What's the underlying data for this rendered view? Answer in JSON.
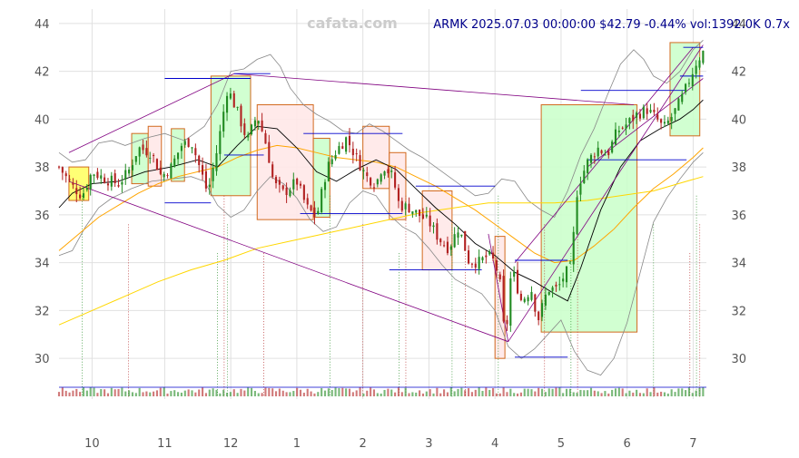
{
  "watermark": "cafata.com",
  "title": "ARMK 2025.07.03 00:00:00 $42.79 -0.44% vol:1392.0K 0.7x",
  "colors": {
    "up": "#228b22",
    "down": "#b22222",
    "grid": "#e0e0e0",
    "title": "#00008b",
    "ma_fast": "#000000",
    "ma_mid": "#ffa500",
    "ma_slow": "#ffd700",
    "band": "#888888",
    "trend": "#800080",
    "level": "#0000cd",
    "box_up_fill": "#ccffcc",
    "box_down_fill": "#ffe8e8",
    "box_edge": "#d2691e",
    "box_yellow": "#ffff66"
  },
  "chart_data": {
    "type": "candlestick",
    "title": "ARMK 2025.07.03 00:00:00 $42.79 -0.44% vol:1392.0K 0.7x",
    "x_ticks": [
      "10",
      "11",
      "12",
      "1",
      "2",
      "3",
      "4",
      "5",
      "6",
      "7"
    ],
    "x_tick_pos": [
      9.8,
      10.9,
      11.9,
      12.9,
      13.9,
      14.9,
      15.9,
      16.9,
      17.9,
      18.9
    ],
    "x_range": [
      9.3,
      19.1
    ],
    "y_ticks": [
      30,
      32,
      34,
      36,
      38,
      40,
      42,
      44
    ],
    "y_range": [
      28.3,
      44.6
    ],
    "close_path": [
      [
        9.3,
        38.0
      ],
      [
        9.5,
        37.2
      ],
      [
        9.65,
        36.8
      ],
      [
        9.8,
        37.8
      ],
      [
        10.0,
        37.5
      ],
      [
        10.2,
        37.3
      ],
      [
        10.35,
        37.8
      ],
      [
        10.5,
        38.8
      ],
      [
        10.7,
        38.6
      ],
      [
        10.85,
        37.6
      ],
      [
        11.0,
        38.0
      ],
      [
        11.15,
        38.9
      ],
      [
        11.3,
        39.1
      ],
      [
        11.45,
        37.8
      ],
      [
        11.55,
        36.9
      ],
      [
        11.7,
        38.8
      ],
      [
        11.85,
        41.3
      ],
      [
        12.0,
        40.3
      ],
      [
        12.15,
        39.1
      ],
      [
        12.3,
        40.2
      ],
      [
        12.45,
        38.8
      ],
      [
        12.55,
        37.3
      ],
      [
        12.7,
        36.9
      ],
      [
        12.9,
        37.4
      ],
      [
        13.05,
        36.3
      ],
      [
        13.2,
        35.9
      ],
      [
        13.35,
        37.9
      ],
      [
        13.5,
        38.7
      ],
      [
        13.65,
        39.2
      ],
      [
        13.8,
        38.4
      ],
      [
        13.95,
        37.6
      ],
      [
        14.1,
        37.3
      ],
      [
        14.2,
        38.1
      ],
      [
        14.35,
        37.6
      ],
      [
        14.45,
        36.4
      ],
      [
        14.6,
        36.3
      ],
      [
        14.75,
        36.0
      ],
      [
        14.9,
        35.7
      ],
      [
        15.05,
        35.0
      ],
      [
        15.2,
        34.6
      ],
      [
        15.35,
        35.5
      ],
      [
        15.5,
        34.1
      ],
      [
        15.65,
        34.0
      ],
      [
        15.8,
        34.3
      ],
      [
        15.9,
        34.0
      ],
      [
        16.0,
        32.8
      ],
      [
        16.05,
        30.4
      ],
      [
        16.15,
        33.8
      ],
      [
        16.3,
        32.4
      ],
      [
        16.45,
        32.9
      ],
      [
        16.55,
        31.6
      ],
      [
        16.7,
        32.9
      ],
      [
        16.85,
        32.9
      ],
      [
        16.95,
        33.5
      ],
      [
        17.05,
        33.8
      ],
      [
        17.15,
        37.2
      ],
      [
        17.3,
        38.2
      ],
      [
        17.45,
        38.8
      ],
      [
        17.6,
        38.5
      ],
      [
        17.75,
        39.5
      ],
      [
        17.9,
        39.8
      ],
      [
        18.05,
        40.2
      ],
      [
        18.2,
        40.4
      ],
      [
        18.35,
        40.0
      ],
      [
        18.45,
        39.6
      ],
      [
        18.6,
        40.2
      ],
      [
        18.75,
        41.0
      ],
      [
        18.85,
        41.7
      ],
      [
        18.95,
        42.4
      ],
      [
        19.05,
        42.8
      ]
    ],
    "ma_fast": [
      [
        9.3,
        36.3
      ],
      [
        9.5,
        36.9
      ],
      [
        9.8,
        37.3
      ],
      [
        10.2,
        37.4
      ],
      [
        10.6,
        37.8
      ],
      [
        11.0,
        38.0
      ],
      [
        11.4,
        38.3
      ],
      [
        11.7,
        38.0
      ],
      [
        12.0,
        38.9
      ],
      [
        12.3,
        39.7
      ],
      [
        12.6,
        39.6
      ],
      [
        12.9,
        38.8
      ],
      [
        13.2,
        37.8
      ],
      [
        13.5,
        37.4
      ],
      [
        13.8,
        37.9
      ],
      [
        14.1,
        38.3
      ],
      [
        14.4,
        37.9
      ],
      [
        14.7,
        37.1
      ],
      [
        15.0,
        36.3
      ],
      [
        15.3,
        35.6
      ],
      [
        15.6,
        34.8
      ],
      [
        15.9,
        34.3
      ],
      [
        16.2,
        33.6
      ],
      [
        16.5,
        33.2
      ],
      [
        16.8,
        32.7
      ],
      [
        17.0,
        32.4
      ],
      [
        17.2,
        33.8
      ],
      [
        17.5,
        36.2
      ],
      [
        17.8,
        38.0
      ],
      [
        18.1,
        39.1
      ],
      [
        18.4,
        39.6
      ],
      [
        18.7,
        40.0
      ],
      [
        18.9,
        40.4
      ],
      [
        19.05,
        40.8
      ]
    ],
    "ma_mid": [
      [
        9.3,
        34.5
      ],
      [
        9.6,
        35.2
      ],
      [
        9.9,
        35.9
      ],
      [
        10.2,
        36.4
      ],
      [
        10.5,
        36.9
      ],
      [
        10.8,
        37.3
      ],
      [
        11.1,
        37.6
      ],
      [
        11.4,
        37.8
      ],
      [
        11.7,
        38.0
      ],
      [
        12.0,
        38.4
      ],
      [
        12.3,
        38.7
      ],
      [
        12.6,
        38.9
      ],
      [
        12.9,
        38.8
      ],
      [
        13.2,
        38.6
      ],
      [
        13.5,
        38.4
      ],
      [
        13.8,
        38.3
      ],
      [
        14.1,
        38.2
      ],
      [
        14.4,
        38.0
      ],
      [
        14.7,
        37.6
      ],
      [
        15.0,
        37.2
      ],
      [
        15.3,
        36.7
      ],
      [
        15.6,
        36.2
      ],
      [
        15.9,
        35.6
      ],
      [
        16.2,
        35.0
      ],
      [
        16.5,
        34.4
      ],
      [
        16.8,
        34.0
      ],
      [
        17.1,
        34.1
      ],
      [
        17.4,
        34.7
      ],
      [
        17.7,
        35.4
      ],
      [
        18.0,
        36.3
      ],
      [
        18.3,
        37.1
      ],
      [
        18.6,
        37.7
      ],
      [
        18.9,
        38.4
      ],
      [
        19.05,
        38.8
      ]
    ],
    "ma_slow": [
      [
        9.3,
        31.4
      ],
      [
        9.8,
        32.0
      ],
      [
        10.3,
        32.6
      ],
      [
        10.8,
        33.2
      ],
      [
        11.3,
        33.7
      ],
      [
        11.8,
        34.1
      ],
      [
        12.3,
        34.6
      ],
      [
        12.8,
        34.9
      ],
      [
        13.3,
        35.2
      ],
      [
        13.8,
        35.5
      ],
      [
        14.3,
        35.8
      ],
      [
        14.8,
        36.1
      ],
      [
        15.3,
        36.3
      ],
      [
        15.8,
        36.5
      ],
      [
        16.3,
        36.5
      ],
      [
        16.8,
        36.5
      ],
      [
        17.3,
        36.6
      ],
      [
        17.8,
        36.8
      ],
      [
        18.3,
        37.0
      ],
      [
        18.8,
        37.4
      ],
      [
        19.05,
        37.6
      ]
    ],
    "band_upper": [
      [
        9.3,
        38.6
      ],
      [
        9.5,
        38.2
      ],
      [
        9.7,
        38.3
      ],
      [
        9.9,
        39.0
      ],
      [
        10.1,
        39.1
      ],
      [
        10.3,
        38.9
      ],
      [
        10.6,
        39.2
      ],
      [
        10.9,
        39.4
      ],
      [
        11.2,
        39.1
      ],
      [
        11.5,
        39.7
      ],
      [
        11.7,
        40.6
      ],
      [
        11.9,
        42.0
      ],
      [
        12.1,
        42.1
      ],
      [
        12.3,
        42.5
      ],
      [
        12.5,
        42.7
      ],
      [
        12.65,
        42.2
      ],
      [
        12.8,
        41.3
      ],
      [
        13.0,
        40.6
      ],
      [
        13.2,
        40.2
      ],
      [
        13.4,
        39.9
      ],
      [
        13.6,
        39.5
      ],
      [
        13.8,
        39.4
      ],
      [
        14.0,
        39.8
      ],
      [
        14.2,
        39.5
      ],
      [
        14.4,
        39.1
      ],
      [
        14.6,
        38.7
      ],
      [
        14.8,
        38.4
      ],
      [
        15.0,
        38.0
      ],
      [
        15.2,
        37.6
      ],
      [
        15.4,
        37.2
      ],
      [
        15.6,
        36.8
      ],
      [
        15.8,
        36.9
      ],
      [
        16.0,
        37.5
      ],
      [
        16.2,
        37.4
      ],
      [
        16.4,
        36.6
      ],
      [
        16.6,
        36.2
      ],
      [
        16.8,
        35.9
      ],
      [
        17.0,
        37.0
      ],
      [
        17.2,
        38.5
      ],
      [
        17.4,
        39.6
      ],
      [
        17.6,
        41.0
      ],
      [
        17.8,
        42.3
      ],
      [
        18.0,
        42.9
      ],
      [
        18.15,
        42.5
      ],
      [
        18.3,
        41.8
      ],
      [
        18.5,
        41.5
      ],
      [
        18.7,
        42.0
      ],
      [
        18.9,
        42.9
      ],
      [
        19.05,
        43.3
      ]
    ],
    "band_lower": [
      [
        9.3,
        34.3
      ],
      [
        9.5,
        34.5
      ],
      [
        9.7,
        35.5
      ],
      [
        9.9,
        36.3
      ],
      [
        10.1,
        36.7
      ],
      [
        10.4,
        37.1
      ],
      [
        10.7,
        37.4
      ],
      [
        11.0,
        37.5
      ],
      [
        11.3,
        37.6
      ],
      [
        11.5,
        37.4
      ],
      [
        11.7,
        36.4
      ],
      [
        11.9,
        35.9
      ],
      [
        12.1,
        36.2
      ],
      [
        12.3,
        37.0
      ],
      [
        12.5,
        37.6
      ],
      [
        12.7,
        37.3
      ],
      [
        12.9,
        36.7
      ],
      [
        13.1,
        35.8
      ],
      [
        13.3,
        35.3
      ],
      [
        13.5,
        35.5
      ],
      [
        13.7,
        36.5
      ],
      [
        13.9,
        37.0
      ],
      [
        14.1,
        36.8
      ],
      [
        14.3,
        36.0
      ],
      [
        14.5,
        35.5
      ],
      [
        14.7,
        35.2
      ],
      [
        14.9,
        34.6
      ],
      [
        15.1,
        33.9
      ],
      [
        15.3,
        33.3
      ],
      [
        15.5,
        33.0
      ],
      [
        15.7,
        32.7
      ],
      [
        15.9,
        32.0
      ],
      [
        16.1,
        30.5
      ],
      [
        16.3,
        30.0
      ],
      [
        16.5,
        30.4
      ],
      [
        16.7,
        31.0
      ],
      [
        16.9,
        31.6
      ],
      [
        17.1,
        30.3
      ],
      [
        17.3,
        29.5
      ],
      [
        17.5,
        29.3
      ],
      [
        17.7,
        30.0
      ],
      [
        17.9,
        31.5
      ],
      [
        18.1,
        33.6
      ],
      [
        18.3,
        35.7
      ],
      [
        18.5,
        36.7
      ],
      [
        18.7,
        37.5
      ],
      [
        18.9,
        38.2
      ],
      [
        19.05,
        38.6
      ]
    ],
    "trendlines": [
      [
        [
          9.45,
          38.6
        ],
        [
          11.95,
          41.9
        ]
      ],
      [
        [
          11.95,
          41.9
        ],
        [
          18.0,
          40.6
        ]
      ],
      [
        [
          9.45,
          37.4
        ],
        [
          16.1,
          30.7
        ]
      ],
      [
        [
          16.1,
          30.7
        ],
        [
          19.05,
          43.1
        ]
      ],
      [
        [
          15.8,
          35.2
        ],
        [
          16.1,
          30.7
        ]
      ],
      [
        [
          17.3,
          38.0
        ],
        [
          19.05,
          41.7
        ]
      ],
      [
        [
          16.2,
          34.0
        ],
        [
          18.9,
          43.0
        ]
      ]
    ],
    "levels": [
      [
        [
          10.9,
          12.2
        ],
        41.7
      ],
      [
        [
          11.95,
          12.5
        ],
        41.9
      ],
      [
        [
          11.8,
          12.4
        ],
        38.5
      ],
      [
        [
          10.9,
          11.6
        ],
        36.5
      ],
      [
        [
          13.0,
          14.5
        ],
        39.4
      ],
      [
        [
          12.95,
          14.5
        ],
        36.05
      ],
      [
        [
          14.7,
          15.9
        ],
        37.2
      ],
      [
        [
          14.3,
          15.7
        ],
        33.7
      ],
      [
        [
          16.2,
          17.0
        ],
        34.1
      ],
      [
        [
          16.2,
          17.0
        ],
        30.05
      ],
      [
        [
          17.2,
          18.8
        ],
        41.2
      ],
      [
        [
          17.3,
          18.8
        ],
        38.3
      ],
      [
        [
          18.75,
          19.05
        ],
        43.0
      ],
      [
        [
          18.7,
          19.05
        ],
        41.8
      ]
    ],
    "boxes": [
      {
        "x": [
          9.45,
          9.75
        ],
        "y": [
          36.6,
          38.0
        ],
        "kind": "yellow"
      },
      {
        "x": [
          10.4,
          10.65
        ],
        "y": [
          37.3,
          39.4
        ],
        "kind": "up"
      },
      {
        "x": [
          10.65,
          10.85
        ],
        "y": [
          37.2,
          39.7
        ],
        "kind": "down"
      },
      {
        "x": [
          11.0,
          11.2
        ],
        "y": [
          37.4,
          39.6
        ],
        "kind": "up"
      },
      {
        "x": [
          11.6,
          12.2
        ],
        "y": [
          36.8,
          41.8
        ],
        "kind": "up"
      },
      {
        "x": [
          12.3,
          13.15
        ],
        "y": [
          35.8,
          40.6
        ],
        "kind": "down"
      },
      {
        "x": [
          13.15,
          13.4
        ],
        "y": [
          35.9,
          39.2
        ],
        "kind": "up"
      },
      {
        "x": [
          13.9,
          14.3
        ],
        "y": [
          37.1,
          39.7
        ],
        "kind": "down"
      },
      {
        "x": [
          14.3,
          14.55
        ],
        "y": [
          35.8,
          38.6
        ],
        "kind": "down"
      },
      {
        "x": [
          14.8,
          15.25
        ],
        "y": [
          33.7,
          37.0
        ],
        "kind": "down"
      },
      {
        "x": [
          15.9,
          16.05
        ],
        "y": [
          30.0,
          35.1
        ],
        "kind": "down"
      },
      {
        "x": [
          16.6,
          18.05
        ],
        "y": [
          31.1,
          40.6
        ],
        "kind": "up"
      },
      {
        "x": [
          18.55,
          19.0
        ],
        "y": [
          39.3,
          43.2
        ],
        "kind": "up"
      }
    ],
    "event_lines_x": [
      9.65,
      10.35,
      11.7,
      11.8,
      11.85,
      12.4,
      13.4,
      13.9,
      14.45,
      14.55,
      15.25,
      15.45,
      15.95,
      16.65,
      17.05,
      17.15,
      18.3,
      18.85,
      18.95,
      19.0
    ]
  }
}
